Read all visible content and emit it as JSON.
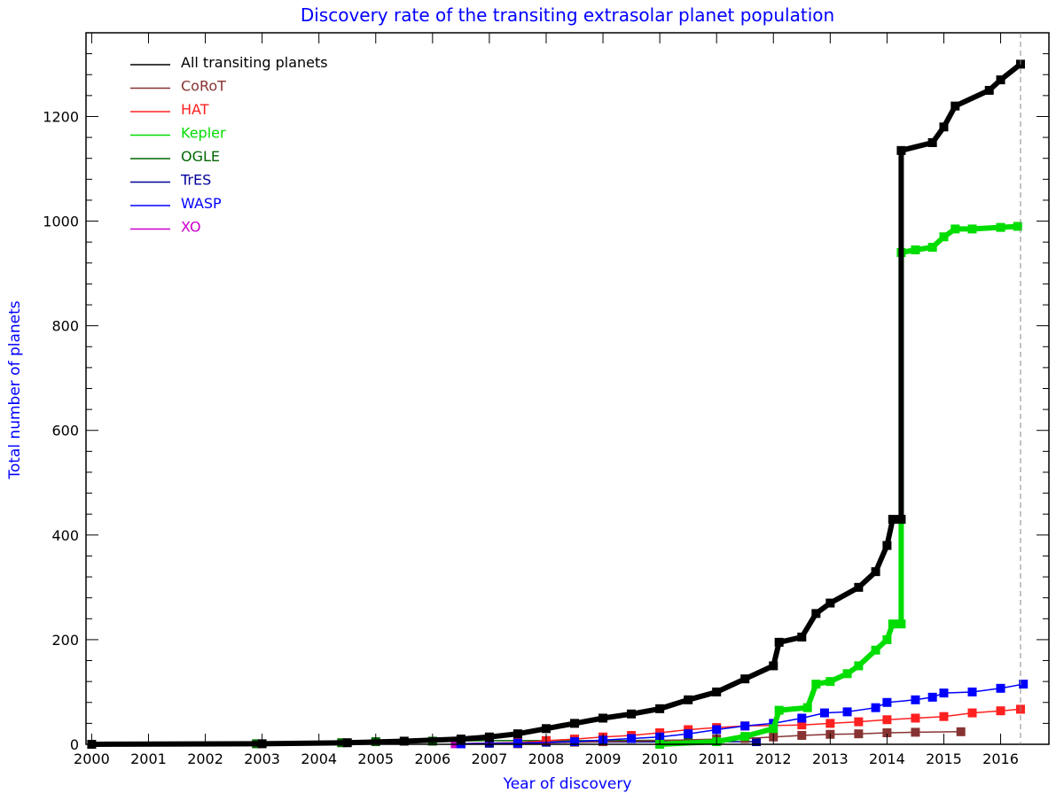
{
  "chart_data": {
    "type": "line",
    "title": "Discovery rate of the transiting extrasolar planet population",
    "xlabel": "Year of discovery",
    "ylabel": "Total number of planets",
    "xlim": [
      1999.9,
      2016.85
    ],
    "ylim": [
      0,
      1360
    ],
    "xticks": [
      2000,
      2001,
      2002,
      2003,
      2004,
      2005,
      2006,
      2007,
      2008,
      2009,
      2010,
      2011,
      2012,
      2013,
      2014,
      2015,
      2016
    ],
    "yticks": [
      0,
      200,
      400,
      600,
      800,
      1000,
      1200
    ],
    "current_date_marker": 2016.35,
    "legend_position": "top-left",
    "title_color": "#0000ff",
    "series": [
      {
        "name": "All transiting planets",
        "color": "#000000",
        "label_color": "#000000",
        "points": [
          [
            2000,
            0
          ],
          [
            2003,
            1
          ],
          [
            2004.5,
            3
          ],
          [
            2005.5,
            6
          ],
          [
            2006.5,
            10
          ],
          [
            2007,
            14
          ],
          [
            2007.5,
            20
          ],
          [
            2008,
            30
          ],
          [
            2008.5,
            40
          ],
          [
            2009,
            50
          ],
          [
            2009.5,
            58
          ],
          [
            2010,
            68
          ],
          [
            2010.5,
            85
          ],
          [
            2011,
            100
          ],
          [
            2011.5,
            125
          ],
          [
            2012,
            150
          ],
          [
            2012.1,
            195
          ],
          [
            2012.5,
            205
          ],
          [
            2012.75,
            250
          ],
          [
            2013,
            270
          ],
          [
            2013.5,
            300
          ],
          [
            2013.8,
            330
          ],
          [
            2014,
            380
          ],
          [
            2014.1,
            430
          ],
          [
            2014.25,
            430
          ],
          [
            2014.25,
            1135
          ],
          [
            2014.8,
            1150
          ],
          [
            2015,
            1180
          ],
          [
            2015.2,
            1220
          ],
          [
            2015.8,
            1250
          ],
          [
            2016,
            1270
          ],
          [
            2016.35,
            1300
          ]
        ]
      },
      {
        "name": "CoRoT",
        "color": "#883333",
        "label_color": "#883333",
        "points": [
          [
            2007.5,
            1
          ],
          [
            2008.5,
            4
          ],
          [
            2009,
            5
          ],
          [
            2010,
            7
          ],
          [
            2011,
            10
          ],
          [
            2011.5,
            11
          ],
          [
            2012,
            14
          ],
          [
            2012.5,
            17
          ],
          [
            2013,
            19
          ],
          [
            2013.5,
            20
          ],
          [
            2014,
            22
          ],
          [
            2014.5,
            23
          ],
          [
            2015.3,
            24
          ]
        ]
      },
      {
        "name": "HAT",
        "color": "#ff2020",
        "label_color": "#ff2020",
        "points": [
          [
            2006.5,
            1
          ],
          [
            2007.5,
            3
          ],
          [
            2008,
            7
          ],
          [
            2008.5,
            10
          ],
          [
            2009,
            14
          ],
          [
            2009.5,
            17
          ],
          [
            2010,
            22
          ],
          [
            2010.5,
            28
          ],
          [
            2011,
            32
          ],
          [
            2011.5,
            35
          ],
          [
            2012.5,
            37
          ],
          [
            2013,
            40
          ],
          [
            2013.5,
            43
          ],
          [
            2014,
            47
          ],
          [
            2014.5,
            50
          ],
          [
            2015,
            53
          ],
          [
            2015.5,
            60
          ],
          [
            2016,
            64
          ],
          [
            2016.35,
            67
          ]
        ]
      },
      {
        "name": "Kepler",
        "color": "#00dd00",
        "label_color": "#00dd00",
        "points": [
          [
            2010,
            0
          ],
          [
            2011,
            5
          ],
          [
            2011.5,
            15
          ],
          [
            2012,
            30
          ],
          [
            2012.1,
            65
          ],
          [
            2012.6,
            70
          ],
          [
            2012.75,
            115
          ],
          [
            2013,
            120
          ],
          [
            2013.3,
            135
          ],
          [
            2013.5,
            150
          ],
          [
            2013.8,
            180
          ],
          [
            2014,
            200
          ],
          [
            2014.1,
            230
          ],
          [
            2014.25,
            230
          ],
          [
            2014.25,
            940
          ],
          [
            2014.5,
            945
          ],
          [
            2014.8,
            950
          ],
          [
            2015,
            970
          ],
          [
            2015.2,
            985
          ],
          [
            2015.5,
            985
          ],
          [
            2016,
            988
          ],
          [
            2016.3,
            990
          ]
        ]
      },
      {
        "name": "OGLE",
        "color": "#006600",
        "label_color": "#006600",
        "points": [
          [
            2002.9,
            1
          ],
          [
            2004.4,
            3
          ],
          [
            2005,
            5
          ],
          [
            2006,
            6
          ],
          [
            2007,
            7
          ],
          [
            2008,
            7
          ],
          [
            2009,
            7
          ],
          [
            2010.5,
            8
          ]
        ]
      },
      {
        "name": "TrES",
        "color": "#000099",
        "label_color": "#000099",
        "points": [
          [
            2006.5,
            1
          ],
          [
            2007,
            2
          ],
          [
            2007.5,
            3
          ],
          [
            2008,
            4
          ],
          [
            2011.7,
            5
          ]
        ]
      },
      {
        "name": "WASP",
        "color": "#0000ff",
        "label_color": "#0000ff",
        "points": [
          [
            2006.5,
            1
          ],
          [
            2007.5,
            2
          ],
          [
            2008.5,
            5
          ],
          [
            2009,
            8
          ],
          [
            2009.5,
            11
          ],
          [
            2010,
            14
          ],
          [
            2010.5,
            20
          ],
          [
            2011,
            28
          ],
          [
            2011.5,
            35
          ],
          [
            2012,
            40
          ],
          [
            2012.5,
            50
          ],
          [
            2012.9,
            60
          ],
          [
            2013.3,
            62
          ],
          [
            2013.8,
            70
          ],
          [
            2014,
            80
          ],
          [
            2014.5,
            85
          ],
          [
            2014.8,
            90
          ],
          [
            2015,
            98
          ],
          [
            2015.5,
            100
          ],
          [
            2016,
            107
          ],
          [
            2016.4,
            115
          ]
        ]
      },
      {
        "name": "XO",
        "color": "#cc00cc",
        "label_color": "#cc00cc",
        "points": [
          [
            2006.4,
            1
          ],
          [
            2007.5,
            3
          ],
          [
            2008.5,
            5
          ]
        ]
      }
    ]
  }
}
